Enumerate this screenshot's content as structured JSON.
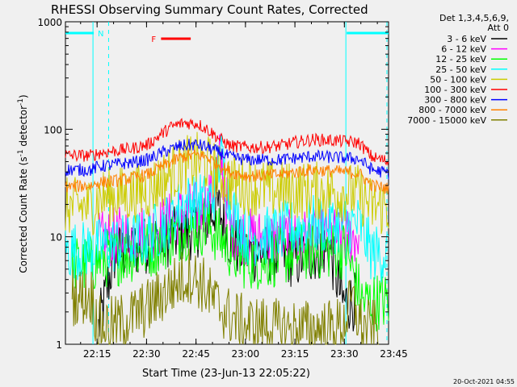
{
  "chart_data": {
    "type": "line",
    "title": "RHESSI Observing Summary Count Rates, Corrected",
    "xlabel": "Start Time (23-Jun-13 22:05:22)",
    "ylabel_main": "Corrected Count Rate (s",
    "ylabel_sup1": "-1",
    "ylabel_mid": " detector",
    "ylabel_sup2": "-1",
    "ylabel_end": ")",
    "yscale": "log",
    "ylim": [
      1,
      1000
    ],
    "xlim_minutes": [
      0,
      98
    ],
    "x_unit": "minutes after 22:05:22",
    "x_ticks": [
      {
        "label": "22:15",
        "t": 9.6
      },
      {
        "label": "22:30",
        "t": 24.6
      },
      {
        "label": "22:45",
        "t": 39.6
      },
      {
        "label": "23:00",
        "t": 54.6
      },
      {
        "label": "23:15",
        "t": 69.6
      },
      {
        "label": "23:30",
        "t": 84.6
      },
      {
        "label": "23:45",
        "t": 99.6
      }
    ],
    "y_ticks": [
      {
        "label": "1",
        "v": 1
      },
      {
        "label": "10",
        "v": 10
      },
      {
        "label": "100",
        "v": 100
      },
      {
        "label": "1000",
        "v": 1000
      }
    ],
    "legend": {
      "placement": "top-right",
      "header1": "Det 1,3,4,5,6,9,",
      "header2": "Att 0"
    },
    "footer_timestamp": "20-Oct-2021 04:55",
    "markers": {
      "night_label": "N",
      "flare_label": "F",
      "night_color": "#00ffff",
      "flare_color": "#ff0000",
      "night_intervals": [
        [
          0,
          8.6
        ],
        [
          85.3,
          98
        ]
      ],
      "flare_interval": [
        29,
        38
      ]
    },
    "series": [
      {
        "name": "3 - 6 keV",
        "color": "#000000",
        "x": [
          10,
          15,
          20,
          25,
          30,
          35,
          40,
          43,
          46,
          50,
          55,
          60,
          65,
          70,
          75,
          80,
          84,
          86,
          88
        ],
        "values": [
          1.4,
          7,
          7.5,
          8.5,
          9.5,
          10.5,
          12,
          14,
          20,
          9,
          7,
          7,
          7,
          6,
          7,
          8,
          2.5,
          2.5,
          2.5
        ]
      },
      {
        "name": "6 - 12 keV",
        "color": "#ff00ff",
        "x": [
          10,
          15,
          20,
          25,
          30,
          35,
          40,
          43,
          45,
          47,
          50,
          55,
          60,
          65,
          70,
          75,
          80,
          85,
          89
        ],
        "values": [
          9,
          10,
          10.5,
          11,
          13,
          16,
          18,
          20,
          30,
          55,
          12,
          10,
          9.5,
          9.5,
          9.5,
          10,
          10,
          10,
          10
        ]
      },
      {
        "name": "12 - 25 keV",
        "color": "#00ff00",
        "x": [
          2,
          8,
          10,
          15,
          20,
          25,
          30,
          35,
          40,
          44,
          48,
          52,
          55,
          60,
          65,
          70,
          75,
          80,
          85,
          90,
          95,
          98
        ],
        "values": [
          5.5,
          5.5,
          6,
          6.5,
          7,
          7.5,
          9,
          11,
          12.5,
          12,
          9,
          6.5,
          6,
          6,
          6.5,
          7,
          7.5,
          7.5,
          7.5,
          2.5,
          2.5,
          2.5
        ]
      },
      {
        "name": "25 - 50 keV",
        "color": "#00ffff",
        "x": [
          0,
          5,
          10,
          15,
          20,
          25,
          30,
          35,
          40,
          43,
          45,
          47,
          50,
          55,
          60,
          65,
          70,
          75,
          80,
          85,
          89,
          93,
          98
        ],
        "values": [
          7.5,
          7.5,
          8,
          8.5,
          9,
          10,
          13,
          19,
          23,
          20,
          25,
          60,
          20,
          10,
          10,
          11,
          12,
          13,
          13,
          13,
          13,
          7,
          7
        ]
      },
      {
        "name": "50 - 100 keV",
        "color": "#cccc00",
        "x": [
          0,
          8,
          10,
          15,
          20,
          25,
          30,
          35,
          40,
          43,
          46,
          50,
          55,
          60,
          65,
          70,
          75,
          80,
          84,
          86,
          89,
          93,
          98
        ],
        "values": [
          19,
          19,
          23,
          24,
          25,
          27,
          35,
          45,
          50,
          48,
          40,
          32,
          30,
          28,
          27,
          27,
          27,
          26,
          26,
          26,
          25,
          19,
          19
        ]
      },
      {
        "name": "100 - 300 keV",
        "color": "#ff0000",
        "x": [
          0,
          8,
          10,
          15,
          20,
          25,
          28,
          32,
          36,
          40,
          43,
          46,
          50,
          55,
          60,
          65,
          70,
          75,
          80,
          85,
          89,
          93,
          98
        ],
        "values": [
          57,
          57,
          60,
          63,
          66,
          72,
          85,
          105,
          115,
          113,
          100,
          85,
          70,
          68,
          68,
          70,
          76,
          80,
          79,
          77,
          75,
          55,
          50
        ]
      },
      {
        "name": "300 - 800 keV",
        "color": "#0000ff",
        "x": [
          0,
          8,
          10,
          15,
          20,
          25,
          30,
          35,
          40,
          43,
          46,
          50,
          55,
          60,
          65,
          70,
          75,
          80,
          85,
          89,
          93,
          98
        ],
        "values": [
          42,
          42,
          45,
          47,
          49,
          52,
          62,
          70,
          72,
          68,
          62,
          55,
          52,
          52,
          52,
          54,
          56,
          55,
          54,
          53,
          42,
          39
        ]
      },
      {
        "name": "800 - 7000 keV",
        "color": "#ff8000",
        "x": [
          0,
          8,
          10,
          15,
          20,
          25,
          30,
          35,
          40,
          43,
          46,
          50,
          55,
          60,
          65,
          70,
          75,
          80,
          85,
          89,
          93,
          98
        ],
        "values": [
          29,
          30,
          32,
          33,
          35,
          38,
          46,
          55,
          58,
          55,
          48,
          40,
          37,
          37,
          38,
          40,
          42,
          41,
          40,
          39,
          30,
          28
        ]
      },
      {
        "name": "7000 - 15000 keV",
        "color": "#808000",
        "x": [
          2,
          8,
          10,
          15,
          20,
          25,
          30,
          35,
          38,
          42,
          45,
          50,
          55,
          60,
          65,
          70,
          75,
          80,
          84,
          87,
          90,
          95
        ],
        "values": [
          2.8,
          2.8,
          1.5,
          1.5,
          1.8,
          2.2,
          3,
          4,
          4.5,
          3.5,
          2.5,
          1.8,
          1.5,
          1.5,
          1.4,
          1.4,
          1.4,
          1.4,
          1.5,
          2.5,
          1.4,
          1.4
        ]
      }
    ]
  }
}
